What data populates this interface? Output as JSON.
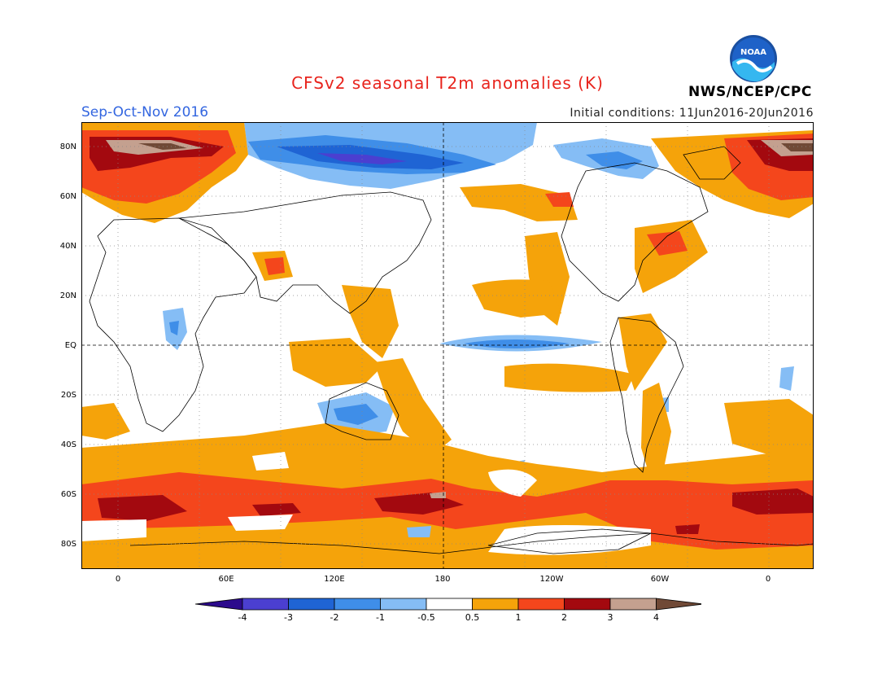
{
  "title": "CFSv2 seasonal T2m anomalies (K)",
  "season": "Sep-Oct-Nov 2016",
  "initial_conditions": "Initial conditions: 11Jun2016-20Jun2016",
  "agency": "NWS/NCEP/CPC",
  "logo_text": "NOAA",
  "y_axis_labels": [
    "80N",
    "60N",
    "40N",
    "20N",
    "EQ",
    "20S",
    "40S",
    "60S",
    "80S"
  ],
  "x_axis_labels": [
    "0",
    "60E",
    "120E",
    "180",
    "120W",
    "60W",
    "0"
  ],
  "legend": {
    "colors": [
      "#2c0a8c",
      "#4b3fd0",
      "#1f64d4",
      "#3f8ee8",
      "#85bdf5",
      "#ffffff",
      "#f5a30a",
      "#f4461c",
      "#a3090f",
      "#c4a08f",
      "#704936"
    ],
    "labels": [
      "-4",
      "-3",
      "-2",
      "-1",
      "-0.5",
      "0.5",
      "1",
      "2",
      "3",
      "4"
    ]
  },
  "palette": {
    "warm1": "#f5a30a",
    "warm2": "#f4461c",
    "warm3": "#a3090f",
    "warm4": "#c4a08f",
    "warm5": "#704936",
    "cool1": "#85bdf5",
    "cool2": "#3f8ee8",
    "cool3": "#1f64d4",
    "cool4": "#4b3fd0"
  }
}
